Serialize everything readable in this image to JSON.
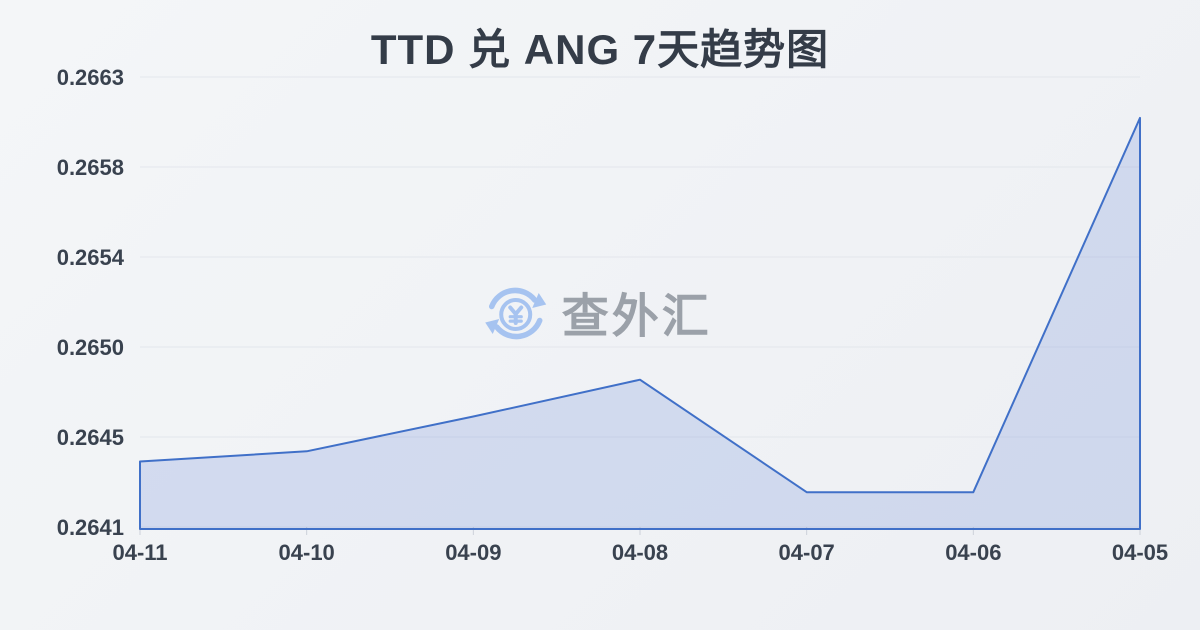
{
  "header": {
    "title": "TTD 兑 ANG 7天趋势图"
  },
  "watermark": {
    "text": "查外汇",
    "icon": "currency-exchange-icon"
  },
  "colors": {
    "background_top": "#f4f6f8",
    "background_bottom": "#edeff3",
    "title": "#343c48",
    "axis_label": "#39424f",
    "gridline": "#e3e6ec",
    "axis_tick": "#ccd1d9",
    "line": "#4070c8",
    "area_fill": "rgba(99,134,213,0.22)",
    "watermark_icon": "#a6c3f0",
    "watermark_text": "#9ba1a9"
  },
  "chart_data": {
    "type": "area",
    "title": "TTD 兑 ANG 7天趋势图",
    "x": [
      "04-11",
      "04-10",
      "04-09",
      "04-08",
      "04-07",
      "04-06",
      "04-05"
    ],
    "series": [
      {
        "name": "TTD/ANG",
        "values": [
          0.26442,
          0.26447,
          0.26464,
          0.26482,
          0.26427,
          0.26427,
          0.2661
        ]
      }
    ],
    "y_tick_labels": [
      "0.2663",
      "0.2658",
      "0.2654",
      "0.2650",
      "0.2645",
      "0.2641"
    ],
    "ylim": [
      0.2641,
      0.2663
    ],
    "xlabel": "",
    "ylabel": "",
    "grid": true,
    "legend": false
  }
}
